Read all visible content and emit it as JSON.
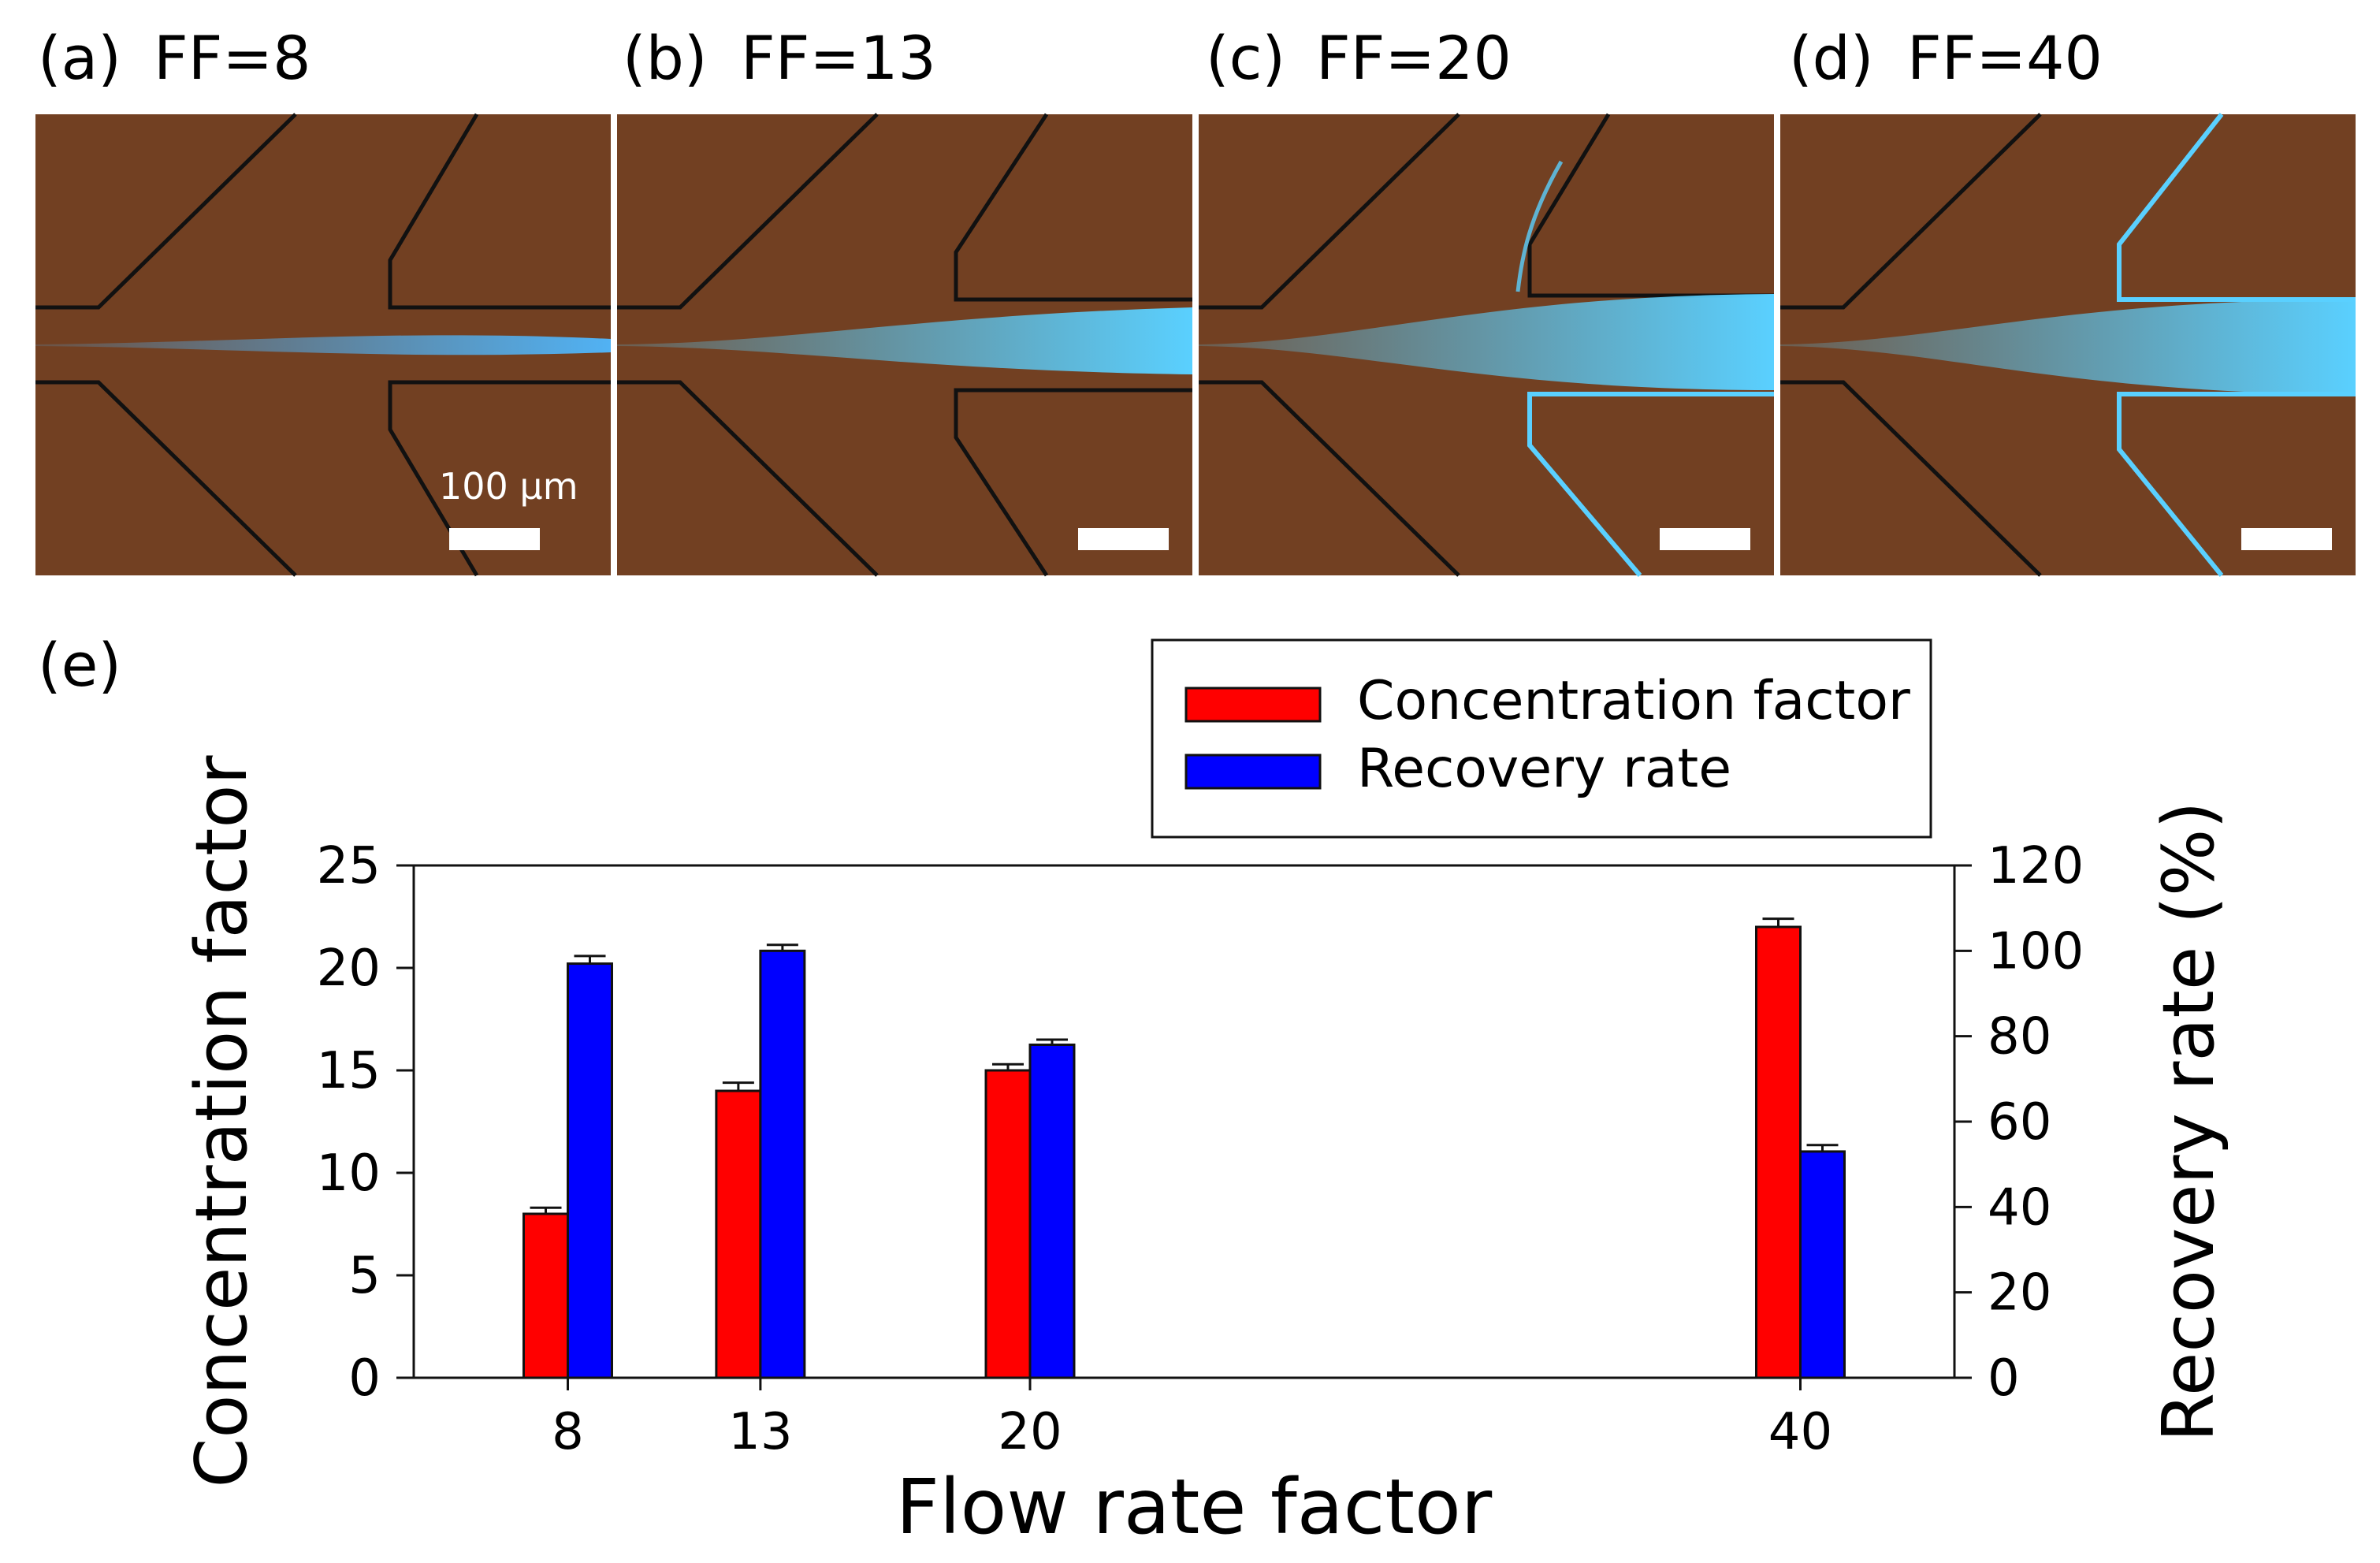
{
  "panels": [
    {
      "label": "(a)",
      "title": "FF=8",
      "scalebar_text": "100 μm"
    },
    {
      "label": "(b)",
      "title": "FF=13"
    },
    {
      "label": "(c)",
      "title": "FF=20"
    },
    {
      "label": "(d)",
      "title": "FF=40"
    }
  ],
  "panel_e_label": "(e)",
  "colors": {
    "concentration": "#ff0000",
    "recovery": "#0000ff",
    "micrograph_bg": "#6b3a1f",
    "fluorescence": "#4fb8ff"
  },
  "chart_data": {
    "type": "bar",
    "title": "",
    "xlabel": "Flow rate factor",
    "ylabel": "Concentration factor",
    "y2label": "Recovery rate (%)",
    "categories": [
      "8",
      "13",
      "20",
      "40"
    ],
    "x": [
      8,
      13,
      20,
      40
    ],
    "xlim": [
      4,
      44
    ],
    "ylim": [
      0,
      25
    ],
    "y2lim": [
      0,
      120
    ],
    "yticks": [
      0,
      5,
      10,
      15,
      20,
      25
    ],
    "y2ticks": [
      0,
      20,
      40,
      60,
      80,
      100,
      120
    ],
    "legend_position": "top-right",
    "series": [
      {
        "name": "Concentration factor",
        "axis": "left",
        "color": "#ff0000",
        "values": [
          8,
          14,
          15,
          22
        ],
        "errors": [
          0.3,
          0.4,
          0.3,
          0.4
        ]
      },
      {
        "name": "Recovery rate",
        "axis": "right",
        "color": "#0000ff",
        "values": [
          97,
          100,
          78,
          53
        ],
        "errors": [
          1.8,
          1.4,
          1.2,
          1.5
        ]
      }
    ]
  }
}
